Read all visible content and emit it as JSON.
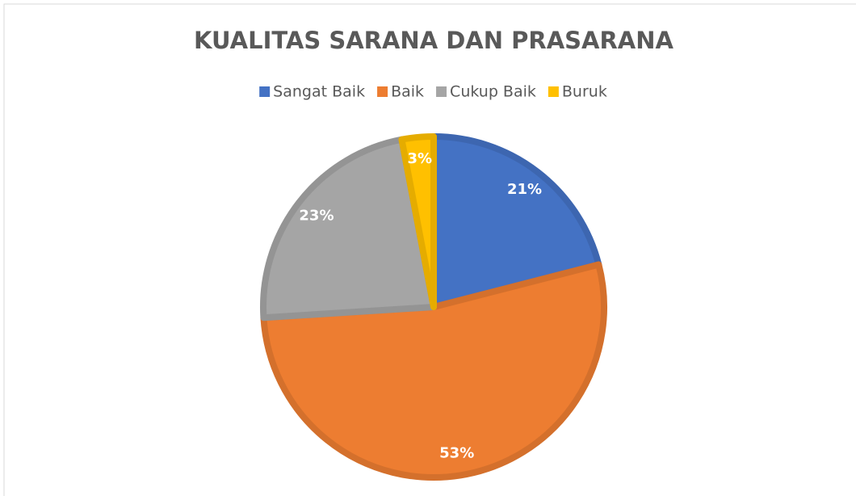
{
  "chart_data": {
    "type": "pie",
    "title": "KUALITAS SARANA DAN PRASARANA",
    "categories": [
      "Sangat Baik",
      "Baik",
      "Cukup Baik",
      "Buruk"
    ],
    "values": [
      21,
      53,
      23,
      3
    ],
    "value_labels": [
      "21%",
      "53%",
      "23%",
      "3%"
    ],
    "colors": [
      "#4472c4",
      "#ed7d31",
      "#a5a5a5",
      "#ffc000"
    ],
    "legend": "top"
  }
}
